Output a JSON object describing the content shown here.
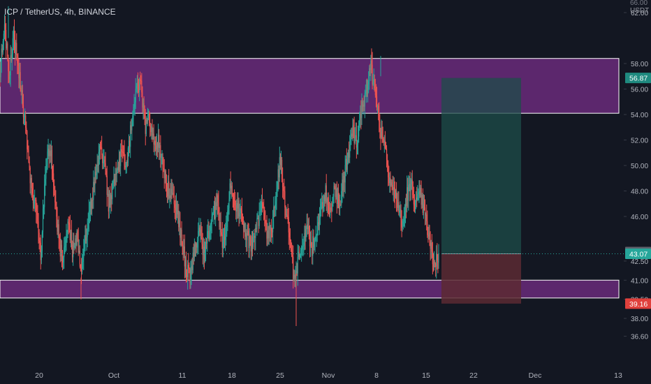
{
  "header": {
    "symbol_line": "ICP / TetherUS, 4h, BINANCE"
  },
  "currency": {
    "top_partial": "66.00",
    "unit": "USDT"
  },
  "chart_data": {
    "type": "candlestick",
    "title": "ICP / TetherUS, 4h, BINANCE",
    "y_axis_ticks": [
      "62.00",
      "58.00",
      "56.00",
      "54.00",
      "52.00",
      "50.00",
      "48.00",
      "46.00",
      "42.50",
      "41.00",
      "39.50",
      "38.00",
      "36.60"
    ],
    "x_axis_ticks": [
      "20",
      "Oct",
      "11",
      "18",
      "25",
      "Nov",
      "8",
      "15",
      "22",
      "Dec",
      "13"
    ],
    "ylim": [
      35.5,
      65.5
    ],
    "price_series": [
      57.5,
      61.2,
      57.0,
      60.3,
      57.6,
      55.0,
      51.5,
      48.0,
      46.5,
      42.8,
      49.5,
      51.6,
      48.5,
      44.0,
      42.5,
      45.8,
      43.2,
      44.5,
      41.2,
      44.6,
      46.6,
      49.0,
      51.2,
      50.2,
      47.0,
      48.5,
      49.5,
      51.5,
      49.6,
      53.2,
      55.5,
      56.8,
      53.0,
      54.0,
      51.5,
      52.2,
      50.1,
      48.2,
      47.6,
      46.5,
      44.5,
      42.3,
      41.0,
      43.2,
      45.0,
      43.0,
      44.7,
      45.8,
      47.0,
      44.0,
      45.0,
      48.5,
      47.0,
      46.5,
      45.0,
      44.0,
      43.8,
      45.5,
      46.9,
      44.8,
      44.8,
      47.5,
      50.6,
      46.8,
      44.5,
      41.2,
      42.6,
      43.8,
      45.0,
      43.5,
      45.0,
      46.5,
      47.8,
      46.5,
      48.0,
      46.8,
      49.0,
      50.8,
      52.5,
      52.0,
      54.6,
      56.0,
      57.7,
      55.5,
      53.0,
      52.0,
      49.3,
      48.0,
      47.0,
      45.0,
      47.8,
      48.3,
      47.0,
      47.6,
      46.0,
      43.9,
      42.2,
      43.07
    ],
    "current_price": "43.07",
    "marked_price": "43.21",
    "take_profit_price": "56.87",
    "stop_loss_price": "39.16",
    "supply_zone": [
      54.1,
      58.4
    ],
    "demand_zone": [
      39.6,
      41.0
    ],
    "position": {
      "type": "long",
      "entry": 43.07,
      "target": 56.87,
      "stop": 39.16
    }
  },
  "colors": {
    "background": "#131722",
    "bull": "#26a69a",
    "bear": "#ef5350",
    "zone_fill": "#6a2a7a",
    "target_fill": "#1e4d49",
    "stop_fill": "#5c2a33",
    "axis_text": "#b2b5be"
  }
}
